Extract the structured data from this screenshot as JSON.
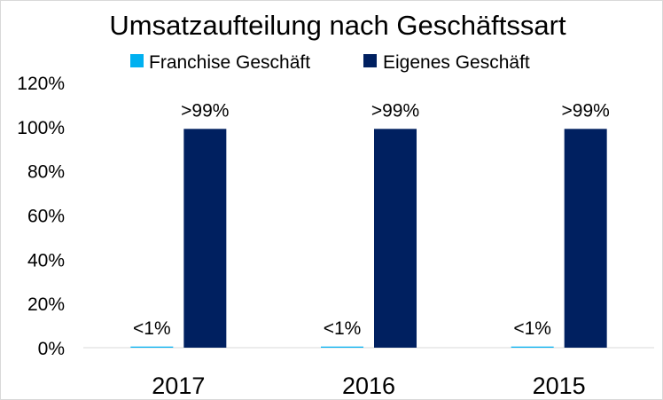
{
  "chart_data": {
    "type": "bar",
    "title": "Umsatzaufteilung nach Geschäftssart",
    "categories": [
      "2017",
      "2016",
      "2015"
    ],
    "series": [
      {
        "name": "Franchise Geschäft",
        "color": "#00b0f0",
        "values": [
          0.5,
          0.5,
          0.5
        ],
        "data_labels": [
          "<1%",
          "<1%",
          "<1%"
        ]
      },
      {
        "name": "Eigenes Geschäft",
        "color": "#002060",
        "values": [
          99,
          99,
          99
        ],
        "data_labels": [
          ">99%",
          ">99%",
          ">99%"
        ]
      }
    ],
    "ylim": [
      0,
      120
    ],
    "yticks": [
      0,
      20,
      40,
      60,
      80,
      100,
      120
    ],
    "ytick_labels": [
      "0%",
      "20%",
      "40%",
      "60%",
      "80%",
      "100%",
      "120%"
    ],
    "xlabel": "",
    "ylabel": "",
    "legend_position": "top",
    "grid": false
  }
}
